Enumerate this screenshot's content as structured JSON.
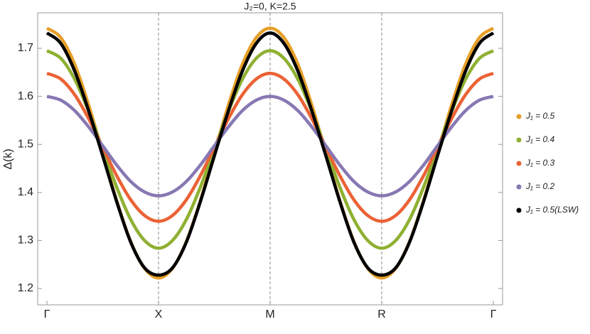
{
  "chart_data": {
    "type": "line",
    "title": "J₂=0, K=2.5",
    "y_label": "Δ(k)",
    "x": [
      0,
      0.125,
      0.25,
      0.375,
      0.5,
      0.625,
      0.75,
      0.875,
      1,
      1.125,
      1.25,
      1.375,
      1.5,
      1.625,
      1.75,
      1.875,
      2,
      2.125,
      2.25,
      2.375,
      2.5,
      2.625,
      2.75,
      2.875,
      3,
      3.125,
      3.25,
      3.375,
      3.5,
      3.625,
      3.75,
      3.875,
      4
    ],
    "xlim": [
      -0.083,
      4.083
    ],
    "xticks": [
      {
        "value": 0,
        "label": "Γ"
      },
      {
        "value": 1,
        "label": "X"
      },
      {
        "value": 2,
        "label": "M"
      },
      {
        "value": 3,
        "label": "R"
      },
      {
        "value": 4,
        "label": "Γ"
      }
    ],
    "dashed_vlines": [
      1,
      2,
      3
    ],
    "ylim": [
      1.166,
      1.774
    ],
    "yticks": [
      1.2,
      1.3,
      1.4,
      1.5,
      1.6,
      1.7
    ],
    "series": [
      {
        "name": "J₁ = 0.5",
        "color": "#e69f29",
        "values": [
          1.742,
          1.722,
          1.666,
          1.581,
          1.482,
          1.383,
          1.298,
          1.242,
          1.222,
          1.242,
          1.298,
          1.383,
          1.482,
          1.581,
          1.666,
          1.722,
          1.742,
          1.722,
          1.666,
          1.581,
          1.482,
          1.383,
          1.298,
          1.242,
          1.222,
          1.242,
          1.298,
          1.383,
          1.482,
          1.581,
          1.666,
          1.722,
          1.742
        ]
      },
      {
        "name": "J₁ = 0.4",
        "color": "#8fb032",
        "values": [
          1.695,
          1.679,
          1.635,
          1.568,
          1.49,
          1.411,
          1.344,
          1.3,
          1.284,
          1.3,
          1.344,
          1.411,
          1.49,
          1.568,
          1.635,
          1.679,
          1.695,
          1.679,
          1.635,
          1.568,
          1.49,
          1.411,
          1.344,
          1.3,
          1.284,
          1.3,
          1.344,
          1.411,
          1.49,
          1.568,
          1.635,
          1.679,
          1.695
        ]
      },
      {
        "name": "J₁ = 0.3",
        "color": "#eb6235",
        "values": [
          1.648,
          1.636,
          1.603,
          1.553,
          1.494,
          1.435,
          1.385,
          1.352,
          1.34,
          1.352,
          1.385,
          1.435,
          1.494,
          1.553,
          1.603,
          1.636,
          1.648,
          1.636,
          1.603,
          1.553,
          1.494,
          1.435,
          1.385,
          1.352,
          1.34,
          1.352,
          1.385,
          1.435,
          1.494,
          1.553,
          1.603,
          1.636,
          1.648
        ]
      },
      {
        "name": "J₁ = 0.2",
        "color": "#8778b3",
        "values": [
          1.6,
          1.592,
          1.57,
          1.536,
          1.497,
          1.457,
          1.423,
          1.401,
          1.393,
          1.401,
          1.423,
          1.457,
          1.497,
          1.536,
          1.57,
          1.592,
          1.6,
          1.592,
          1.57,
          1.536,
          1.497,
          1.457,
          1.423,
          1.401,
          1.393,
          1.401,
          1.423,
          1.457,
          1.497,
          1.536,
          1.57,
          1.592,
          1.6
        ]
      },
      {
        "name": "J₁ = 0.5(LSW)",
        "color": "#000000",
        "values": [
          1.732,
          1.71,
          1.652,
          1.569,
          1.476,
          1.381,
          1.297,
          1.243,
          1.228,
          1.243,
          1.297,
          1.381,
          1.476,
          1.569,
          1.652,
          1.71,
          1.732,
          1.71,
          1.652,
          1.569,
          1.476,
          1.381,
          1.297,
          1.243,
          1.228,
          1.243,
          1.297,
          1.381,
          1.476,
          1.569,
          1.652,
          1.71,
          1.732
        ]
      }
    ]
  }
}
